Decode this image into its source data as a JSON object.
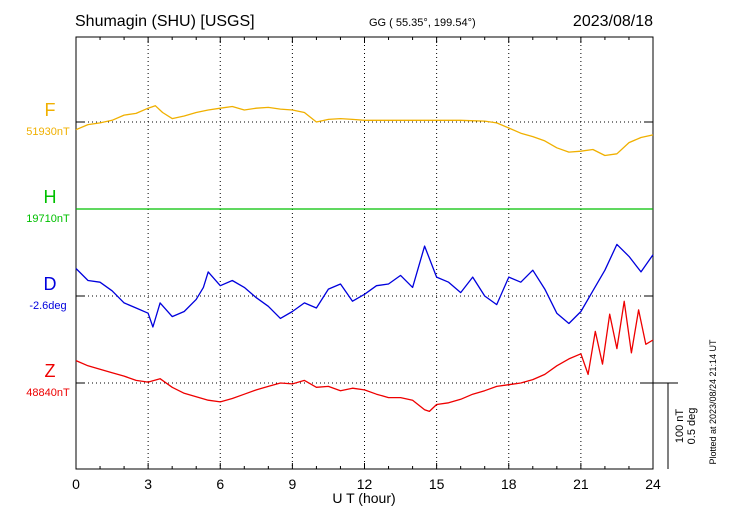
{
  "header": {
    "station": "Shumagin (SHU)  [USGS]",
    "coords": "GG ( 55.35°, 199.54°)",
    "date": "2023/08/18"
  },
  "plotted_note": "Plotted at 2023/08/24 21:14 UT",
  "scale": {
    "nt": "100 nT",
    "deg": "0.5 deg"
  },
  "chart_data": {
    "type": "line",
    "xlabel": "U T (hour)",
    "xlim": [
      0,
      24
    ],
    "xticks": [
      "0",
      "3",
      "6",
      "9",
      "12",
      "15",
      "18",
      "21",
      "24"
    ],
    "grid": true,
    "colors": {
      "F": "#f0b000",
      "H": "#00c000",
      "D": "#0000dd",
      "Z": "#ee0000"
    },
    "series": [
      {
        "name": "F",
        "baseline_label": "51930nT",
        "unit": "nT",
        "baseline": 51930,
        "x": [
          0,
          0.5,
          1,
          1.5,
          2,
          2.5,
          3,
          3.3,
          3.6,
          4,
          4.5,
          5,
          5.5,
          6,
          6.5,
          7,
          7.5,
          8,
          8.5,
          9,
          9.5,
          10,
          10.5,
          11,
          11.5,
          12,
          13,
          14,
          15,
          16,
          17,
          17.5,
          18,
          18.5,
          19,
          19.5,
          20,
          20.5,
          21,
          21.5,
          22,
          22.5,
          23,
          23.5,
          24
        ],
        "values": [
          51921,
          51927,
          51929,
          51932,
          51938,
          51940,
          51946,
          51949,
          51941,
          51934,
          51937,
          51941,
          51944,
          51946,
          51948,
          51944,
          51946,
          51947,
          51945,
          51944,
          51941,
          51930,
          51933,
          51934,
          51933,
          51932,
          51932,
          51932,
          51932,
          51932,
          51931,
          51929,
          51923,
          51917,
          51913,
          51908,
          51900,
          51895,
          51896,
          51898,
          51891,
          51893,
          51906,
          51912,
          51915
        ]
      },
      {
        "name": "H",
        "baseline_label": "19710nT",
        "unit": "nT",
        "baseline": 19710,
        "x": [
          0,
          3,
          6,
          9,
          12,
          15,
          18,
          21,
          24
        ],
        "values": [
          19710,
          19710,
          19710,
          19710,
          19710,
          19710,
          19710,
          19710,
          19710
        ]
      },
      {
        "name": "D",
        "baseline_label": "-2.6deg",
        "unit": "deg",
        "baseline": -2.6,
        "x": [
          0,
          0.5,
          1,
          1.5,
          2,
          2.5,
          3,
          3.2,
          3.5,
          4,
          4.5,
          5,
          5.3,
          5.5,
          6,
          6.5,
          7,
          7.5,
          8,
          8.5,
          9,
          9.5,
          10,
          10.5,
          11,
          11.5,
          12,
          12.5,
          13,
          13.5,
          14,
          14.5,
          15,
          15.5,
          16,
          16.5,
          17,
          17.5,
          18,
          18.5,
          19,
          19.5,
          20,
          20.5,
          21,
          21.5,
          22,
          22.5,
          23,
          23.5,
          24
        ],
        "values": [
          -2.44,
          -2.51,
          -2.52,
          -2.57,
          -2.64,
          -2.67,
          -2.7,
          -2.78,
          -2.64,
          -2.72,
          -2.69,
          -2.62,
          -2.55,
          -2.46,
          -2.54,
          -2.51,
          -2.55,
          -2.61,
          -2.66,
          -2.73,
          -2.69,
          -2.64,
          -2.67,
          -2.56,
          -2.53,
          -2.63,
          -2.59,
          -2.54,
          -2.53,
          -2.48,
          -2.55,
          -2.31,
          -2.49,
          -2.52,
          -2.58,
          -2.49,
          -2.6,
          -2.65,
          -2.49,
          -2.52,
          -2.45,
          -2.56,
          -2.7,
          -2.76,
          -2.69,
          -2.57,
          -2.45,
          -2.3,
          -2.37,
          -2.46,
          -2.36
        ]
      },
      {
        "name": "Z",
        "baseline_label": "48840nT",
        "unit": "nT",
        "baseline": 48840,
        "x": [
          0,
          0.5,
          1,
          1.5,
          2,
          2.5,
          3,
          3.5,
          4,
          4.5,
          5,
          5.5,
          6,
          6.5,
          7,
          7.5,
          8,
          8.5,
          9,
          9.5,
          10,
          10.5,
          11,
          11.5,
          12,
          12.5,
          13,
          13.5,
          14,
          14.5,
          14.7,
          15,
          15.5,
          16,
          16.5,
          17,
          17.5,
          18,
          18.5,
          19,
          19.5,
          20,
          20.5,
          21,
          21.3,
          21.6,
          21.9,
          22.2,
          22.5,
          22.8,
          23.1,
          23.4,
          23.7,
          24
        ],
        "values": [
          48866,
          48860,
          48856,
          48852,
          48848,
          48843,
          48841,
          48845,
          48835,
          48828,
          48824,
          48820,
          48818,
          48822,
          48827,
          48832,
          48836,
          48840,
          48839,
          48843,
          48835,
          48836,
          48831,
          48834,
          48832,
          48827,
          48823,
          48823,
          48820,
          48809,
          48807,
          48815,
          48817,
          48821,
          48827,
          48831,
          48836,
          48838,
          48840,
          48844,
          48850,
          48860,
          48868,
          48874,
          48850,
          48900,
          48862,
          48920,
          48880,
          48935,
          48875,
          48925,
          48885,
          48890
        ]
      }
    ]
  }
}
